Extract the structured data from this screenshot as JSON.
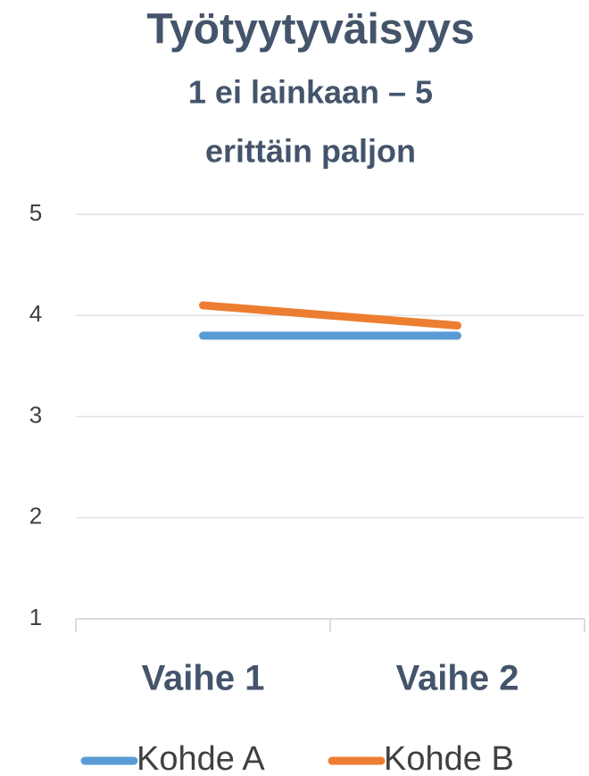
{
  "chart_data": {
    "type": "line",
    "title": "Työtyytyväisyys",
    "subtitle": [
      "1 ei lainkaan – 5",
      "erittäin paljon"
    ],
    "categories": [
      "Vaihe 1",
      "Vaihe 2"
    ],
    "series": [
      {
        "name": "Kohde A",
        "color": "#5b9bd5",
        "values": [
          3.8,
          3.8
        ]
      },
      {
        "name": "Kohde B",
        "color": "#ed7d31",
        "values": [
          4.1,
          3.9
        ]
      }
    ],
    "ylim": [
      1,
      5
    ],
    "yticks": [
      1,
      2,
      3,
      4,
      5
    ],
    "grid": true,
    "legend": "bottom"
  }
}
